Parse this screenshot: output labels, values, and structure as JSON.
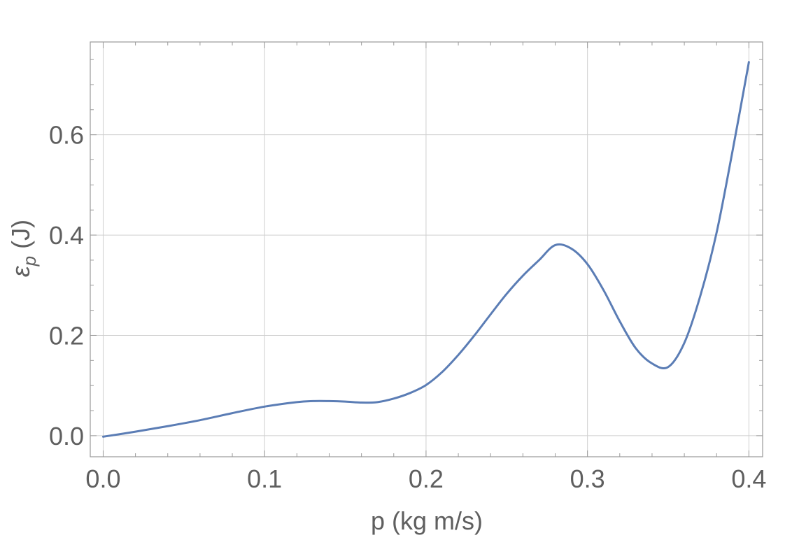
{
  "chart_data": {
    "type": "line",
    "title": "",
    "xlabel": "p (kg m/s)",
    "ylabel_symbol": "ε",
    "ylabel_subscript": "p",
    "ylabel_unit": "(J)",
    "xlim": [
      -0.008,
      0.4085
    ],
    "ylim": [
      -0.042,
      0.785
    ],
    "x_ticks": [
      0.0,
      0.1,
      0.2,
      0.3,
      0.4
    ],
    "x_tick_labels": [
      "0.0",
      "0.1",
      "0.2",
      "0.3",
      "0.4"
    ],
    "y_ticks": [
      0.0,
      0.2,
      0.4,
      0.6
    ],
    "y_tick_labels": [
      "0.0",
      "0.2",
      "0.4",
      "0.6"
    ],
    "x_minor_step": 0.02,
    "y_minor_step": 0.05,
    "grid": true,
    "legend": "none",
    "line_color": "#5b7db5",
    "grid_color": "#cfcfcf",
    "frame_color": "#9a9a9a",
    "series": [
      {
        "x": [
          0.0,
          0.02,
          0.04,
          0.06,
          0.08,
          0.1,
          0.12,
          0.13,
          0.14,
          0.15,
          0.16,
          0.17,
          0.18,
          0.19,
          0.2,
          0.21,
          0.22,
          0.23,
          0.24,
          0.25,
          0.26,
          0.27,
          0.28,
          0.29,
          0.3,
          0.31,
          0.32,
          0.33,
          0.34,
          0.35,
          0.36,
          0.37,
          0.38,
          0.39,
          0.4
        ],
        "y": [
          -0.002,
          0.008,
          0.019,
          0.031,
          0.045,
          0.058,
          0.067,
          0.069,
          0.069,
          0.068,
          0.066,
          0.067,
          0.074,
          0.085,
          0.101,
          0.127,
          0.161,
          0.2,
          0.242,
          0.283,
          0.319,
          0.35,
          0.38,
          0.373,
          0.342,
          0.29,
          0.228,
          0.174,
          0.144,
          0.137,
          0.185,
          0.28,
          0.405,
          0.57,
          0.745
        ]
      }
    ]
  }
}
